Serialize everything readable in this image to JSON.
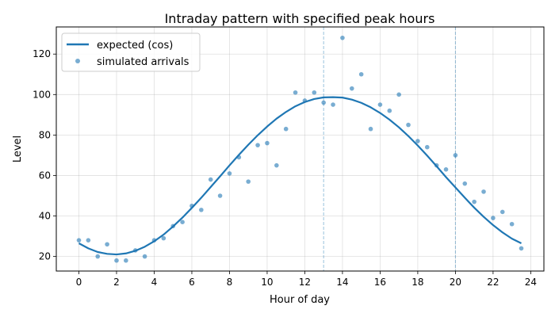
{
  "chart_data": {
    "type": "scatter",
    "title": "Intraday pattern with specified peak hours",
    "xlabel": "Hour of day",
    "ylabel": "Level",
    "xlim": [
      -1.2,
      24.7
    ],
    "ylim": [
      12.8,
      133.4
    ],
    "xticks": [
      0,
      2,
      4,
      6,
      8,
      10,
      12,
      14,
      16,
      18,
      20,
      22,
      24
    ],
    "yticks": [
      20,
      40,
      60,
      80,
      100,
      120
    ],
    "grid": true,
    "legend_position": "top-left",
    "peak_hour_lines": [
      13,
      20
    ],
    "series": [
      {
        "name": "expected (cos)",
        "kind": "line",
        "color": "#1f77b4",
        "x": [
          0,
          0.5,
          1,
          1.5,
          2,
          2.5,
          3,
          3.5,
          4,
          4.5,
          5,
          5.5,
          6,
          6.5,
          7,
          7.5,
          8,
          8.5,
          9,
          9.5,
          10,
          10.5,
          11,
          11.5,
          12,
          12.5,
          13,
          13.5,
          14,
          14.5,
          15,
          15.5,
          16,
          16.5,
          17,
          17.5,
          18,
          18.5,
          19,
          19.5,
          20,
          20.5,
          21,
          21.5,
          22,
          22.5,
          23,
          23.5
        ],
        "y": [
          26.5,
          24.0,
          22.2,
          21.3,
          21.0,
          21.5,
          22.8,
          24.8,
          27.5,
          30.8,
          34.8,
          39.2,
          44.0,
          49.0,
          54.3,
          59.6,
          65.0,
          70.2,
          75.2,
          79.9,
          84.2,
          88.1,
          91.4,
          94.2,
          96.3,
          97.8,
          98.6,
          98.7,
          98.5,
          97.5,
          95.9,
          93.7,
          90.9,
          87.6,
          83.8,
          79.5,
          74.8,
          69.8,
          64.6,
          59.2,
          54.1,
          49.0,
          44.1,
          39.6,
          35.5,
          31.9,
          28.8,
          26.5
        ]
      },
      {
        "name": "simulated arrivals",
        "kind": "scatter",
        "color": "#1f77b4",
        "x": [
          0,
          0.5,
          1,
          1.5,
          2,
          2.5,
          3,
          3.5,
          4,
          4.5,
          5,
          5.5,
          6,
          6.5,
          7,
          7.5,
          8,
          8.5,
          9,
          9.5,
          10,
          10.5,
          11,
          11.5,
          12,
          12.5,
          13,
          13.5,
          14,
          14.5,
          15,
          15.5,
          16,
          16.5,
          17,
          17.5,
          18,
          18.5,
          19,
          19.5,
          20,
          20.5,
          21,
          21.5,
          22,
          22.5,
          23,
          23.5
        ],
        "y": [
          28,
          28,
          20,
          26,
          18,
          18,
          23,
          20,
          28,
          29,
          35,
          37,
          45,
          43,
          58,
          50,
          61,
          69,
          57,
          75,
          76,
          65,
          83,
          101,
          97,
          101,
          96,
          95,
          128,
          103,
          110,
          83,
          95,
          92,
          100,
          85,
          77,
          74,
          65,
          63,
          70,
          56,
          47,
          52,
          39,
          42,
          36,
          24
        ]
      }
    ]
  }
}
